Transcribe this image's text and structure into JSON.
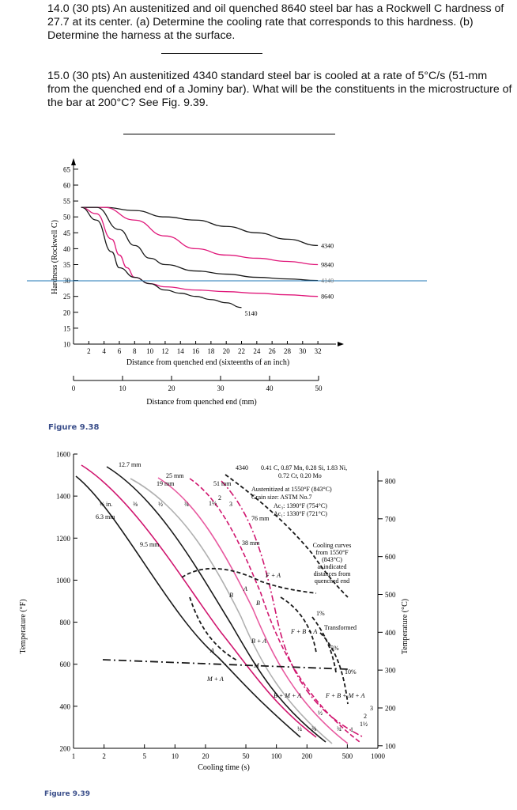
{
  "questions": [
    {
      "text": "14.0 (30 pts)  An austenitized and oil quenched 8640 steel bar has a Rockwell C hardness of 27.7 at its center. (a) Determine the cooling rate that corresponds to this hardness. (b) Determine the harness at the surface."
    },
    {
      "text": "15.0 (30 pts)  An austenitized 4340 standard steel bar is cooled at a rate of 5°C/s (51-mm from the quenched end of a Jominy bar). What will be the constituents in the microstructure of the bar at 200°C? See Fig. 9.39."
    }
  ],
  "figure38": {
    "caption": "Figure 9.38",
    "ylabel": "Hardness (Rockwell C)",
    "xlabel_top": "Distance from quenched end (sixteenths of an inch)",
    "xlabel_bottom": "Distance from quenched end (mm)",
    "colors": {
      "black": "#1a1a1a",
      "magenta": "#e0187a",
      "blue": "#1f77b4"
    },
    "chart_data": {
      "type": "line",
      "title": "",
      "ylim": [
        10,
        65
      ],
      "xlim": [
        0,
        32
      ],
      "yticks": [
        "10",
        "15",
        "20",
        "25",
        "30",
        "35",
        "40",
        "45",
        "50",
        "55",
        "60",
        "65"
      ],
      "xticks_top": [
        "2",
        "4",
        "6",
        "8",
        "10",
        "12",
        "14",
        "16",
        "18",
        "20",
        "22",
        "24",
        "26",
        "28",
        "30",
        "32"
      ],
      "xticks_bottom": [
        "0",
        "10",
        "20",
        "30",
        "40",
        "50"
      ],
      "series": [
        {
          "name": "4340",
          "color": "#1a1a1a",
          "x": [
            1,
            4,
            8,
            12,
            16,
            20,
            24,
            28,
            32
          ],
          "y": [
            53,
            53,
            52,
            50,
            49,
            47,
            45,
            43,
            41
          ]
        },
        {
          "name": "9840",
          "color": "#e0187a",
          "x": [
            1,
            4,
            8,
            12,
            16,
            20,
            24,
            28,
            32
          ],
          "y": [
            53,
            53,
            49,
            44,
            40,
            38,
            37,
            36,
            35
          ]
        },
        {
          "name": "4140",
          "color": "#1a1a1a",
          "x": [
            1,
            3,
            6,
            8,
            10,
            12,
            16,
            20,
            24,
            28,
            32
          ],
          "y": [
            53,
            53,
            46,
            41,
            37,
            35,
            33,
            32,
            31,
            30.5,
            30
          ]
        },
        {
          "name": "8640",
          "color": "#e0187a",
          "x": [
            1,
            3,
            5,
            6,
            7,
            8,
            10,
            12,
            16,
            20,
            24,
            28,
            32
          ],
          "y": [
            53,
            51,
            43,
            38,
            34,
            31,
            29,
            28,
            27,
            26.5,
            26,
            25.5,
            25
          ]
        },
        {
          "name": "5140",
          "color": "#1a1a1a",
          "x": [
            1,
            3,
            5,
            6,
            8,
            10,
            12,
            14,
            16,
            18,
            20,
            22
          ],
          "y": [
            53,
            49,
            39,
            34,
            31,
            29,
            27,
            26,
            25,
            24,
            23,
            21.5
          ]
        }
      ],
      "reference_line": {
        "y": 29.5,
        "color": "#1f77b4"
      }
    }
  },
  "figure39": {
    "caption": "Figure 9.39",
    "ylabel_left": "Temperature (°F)",
    "ylabel_right": "Temperature (°C)",
    "xlabel": "Cooling time (s)",
    "steel": "4340",
    "composition_lines": [
      "0.41 C, 0.87 Mn, 0.28 Si, 1.83 Ni,",
      "0.72 Cr, 0.20 Mo"
    ],
    "austenitized": [
      "Austenitized at 1550°F (843°C)",
      "Grain size: ASTM No.7"
    ],
    "ac3": "Ac₃: 1390°F (754°C)",
    "ac1": "Ac₁: 1330°F (721°C)",
    "cooling_note": [
      "Cooling curves",
      "from 1550°F",
      "(843°C)",
      "at indicated",
      "distances from",
      "quenched end"
    ],
    "transformed": "Transformed",
    "percent_labels": [
      "1%",
      "5%",
      "10%"
    ],
    "distance_labels_mm": [
      "12.7 mm",
      "25 mm",
      "19 mm",
      "51 mm",
      "6.3 mm",
      "9.5 mm",
      "76 mm",
      "38 mm"
    ],
    "distance_labels_in": [
      "¼ in.",
      "⅜",
      "½",
      "¾",
      "1½",
      "2",
      "3"
    ],
    "bottom_fraction_labels": [
      "¼",
      "⅜",
      "½",
      "¾",
      "1",
      "1½",
      "2",
      "3"
    ],
    "region_labels": [
      "A",
      "B",
      "F + A",
      "B",
      "B + A",
      "F + B + A",
      "M",
      "A",
      "M + A",
      "B + M + A",
      "F + B + M + A"
    ],
    "chart_data": {
      "type": "line",
      "x_scale": "log",
      "xticks": [
        "1",
        "2",
        "5",
        "10",
        "20",
        "50",
        "100",
        "200",
        "500",
        "1000"
      ],
      "yticks_F": [
        "200",
        "400",
        "600",
        "800",
        "1000",
        "1200",
        "1400",
        "1600"
      ],
      "yticks_C": [
        "100",
        "200",
        "300",
        "400",
        "500",
        "600",
        "700",
        "800"
      ],
      "ylim_F": [
        200,
        1600
      ]
    }
  }
}
